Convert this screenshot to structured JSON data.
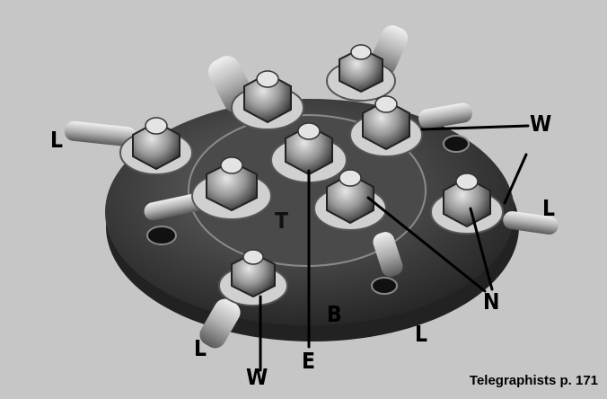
{
  "caption": "Telegraphists p. 171",
  "labels": {
    "L_left": "L",
    "L_right": "L",
    "L_bottom_left": "L",
    "L_bottom_right": "L",
    "W_top": "W",
    "W_bottom": "W",
    "T": "T",
    "B": "B",
    "E": "E",
    "N": "N"
  },
  "colors": {
    "background": "#c9c9c9",
    "plate": "#3a3a3a",
    "metal": "#b4b4b4",
    "annotation": "#000000"
  }
}
